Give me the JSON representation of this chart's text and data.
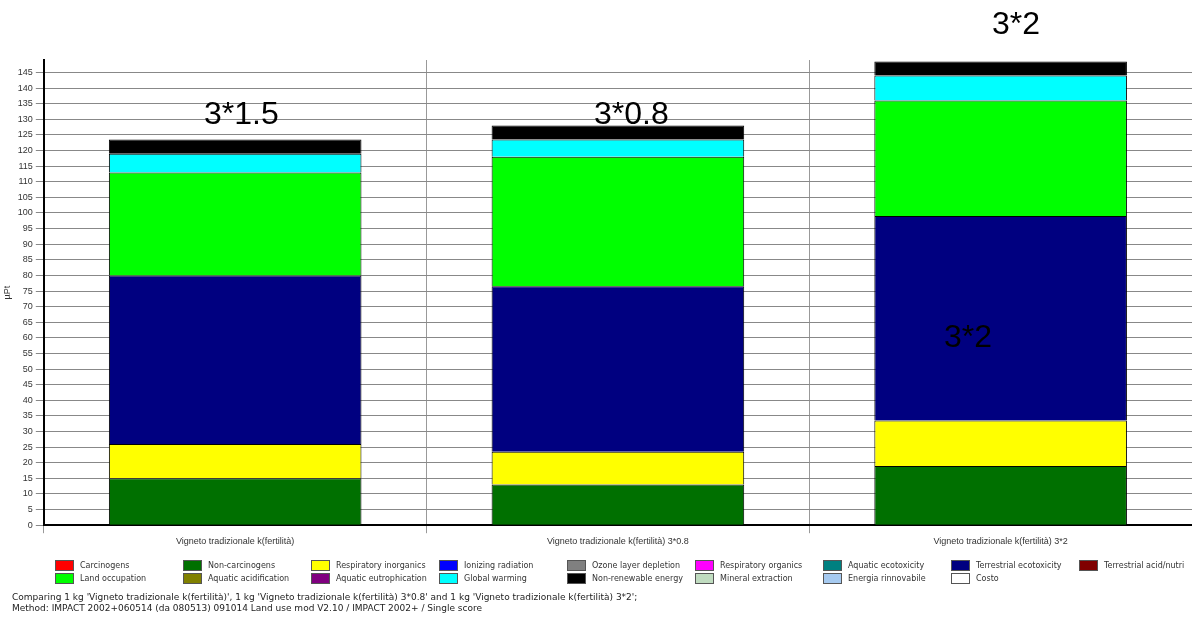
{
  "chart_data": {
    "type": "bar",
    "stacked": true,
    "categories": [
      "Vigneto tradizionale k(fertilità)",
      "Vigneto tradizionale k(fertilità) 3*0.8",
      "Vigneto tradizionale k(fertilità) 3*2"
    ],
    "ylabel": "µPt",
    "ylim": [
      0,
      149
    ],
    "yticks": [
      0,
      5,
      10,
      15,
      20,
      25,
      30,
      35,
      40,
      45,
      50,
      55,
      60,
      65,
      70,
      75,
      80,
      85,
      90,
      95,
      100,
      105,
      110,
      115,
      120,
      125,
      130,
      135,
      140,
      145
    ],
    "grid": true,
    "legend": "bottom",
    "series": [
      {
        "name": "Carcinogens",
        "color": "#ff0000",
        "values": [
          0,
          0,
          0
        ]
      },
      {
        "name": "Non-carcinogens",
        "color": "#007000",
        "values": [
          15,
          13,
          19
        ]
      },
      {
        "name": "Respiratory inorganics",
        "color": "#ffff00",
        "values": [
          11,
          10.5,
          14.5
        ]
      },
      {
        "name": "Ionizing radiation",
        "color": "#0000ff",
        "values": [
          0,
          0,
          0
        ]
      },
      {
        "name": "Ozone layer depletion",
        "color": "#808080",
        "values": [
          0,
          0,
          0
        ]
      },
      {
        "name": "Respiratory organics",
        "color": "#ff00ff",
        "values": [
          0,
          0,
          0
        ]
      },
      {
        "name": "Aquatic ecotoxicity",
        "color": "#008080",
        "values": [
          0,
          0,
          0
        ]
      },
      {
        "name": "Terrestrial ecotoxicity",
        "color": "#000080",
        "values": [
          54,
          53,
          65.5
        ]
      },
      {
        "name": "Terrestrial acid/nutri",
        "color": "#800000",
        "values": [
          0,
          0,
          0
        ]
      },
      {
        "name": "Land occupation",
        "color": "#00ff00",
        "values": [
          33,
          41.5,
          37
        ]
      },
      {
        "name": "Aquatic acidification",
        "color": "#808000",
        "values": [
          0,
          0,
          0
        ]
      },
      {
        "name": "Aquatic eutrophication",
        "color": "#800080",
        "values": [
          0,
          0,
          0
        ]
      },
      {
        "name": "Global warming",
        "color": "#00ffff",
        "values": [
          6,
          5.5,
          8
        ]
      },
      {
        "name": "Non-renewable energy",
        "color": "#000000",
        "values": [
          4.5,
          4.5,
          4.5
        ]
      },
      {
        "name": "Mineral extraction",
        "color": "#c0dcc0",
        "values": [
          0,
          0,
          0
        ]
      },
      {
        "name": "Energia rinnovabile",
        "color": "#a6caf0",
        "values": [
          0,
          0,
          0
        ]
      },
      {
        "name": "Costo",
        "color": "#ffffff",
        "values": [
          0,
          0,
          0
        ]
      }
    ],
    "annotations": [
      "3*1.5",
      "3*0.8",
      "3*2",
      "3*2",
      "Comparing 1 kg 'Vigneto tradizionale k(fertilità)', 1 kg 'Vigneto tradizionale k(fertilità) 3*0.8' and 1 kg 'Vigneto tradizionale k(fertilità) 3*2';",
      "Method: IMPACT 2002+060514 (da 080513) 091014 Land use mod V2.10 / IMPACT 2002+ / Single score"
    ]
  }
}
